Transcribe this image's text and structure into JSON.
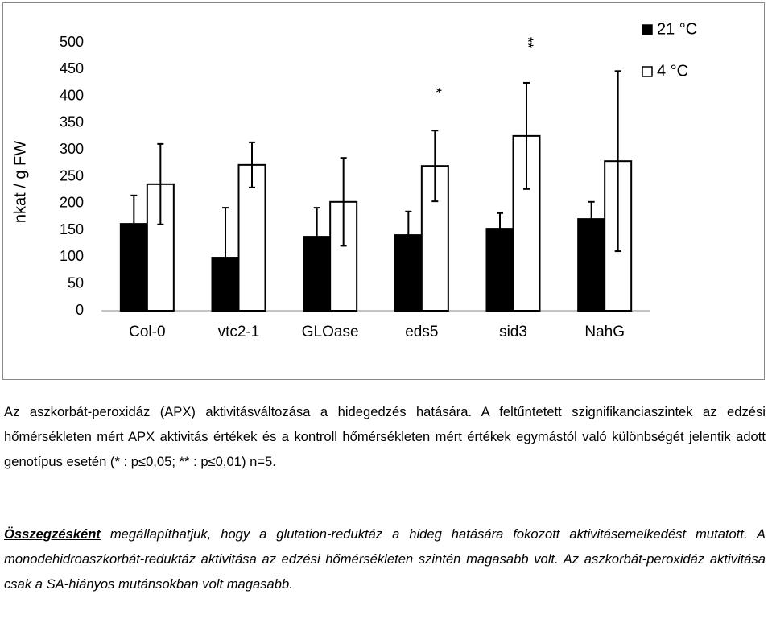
{
  "chart_data": {
    "type": "bar",
    "ylabel": "nkat / g FW",
    "categories": [
      "Col-0",
      "vtc2-1",
      "GLOase",
      "eds5",
      "sid3",
      "NahG"
    ],
    "series": [
      {
        "name": "21 °C",
        "color": "#000000",
        "values": [
          162,
          99,
          138,
          141,
          153,
          171
        ],
        "errors": [
          53,
          93,
          54,
          44,
          29,
          32
        ],
        "error_bars": "up",
        "markers": [
          null,
          null,
          null,
          null,
          null,
          null
        ]
      },
      {
        "name": "4 °C",
        "color": "#ffffff",
        "values": [
          236,
          272,
          203,
          270,
          326,
          279
        ],
        "errors": [
          75,
          42,
          82,
          66,
          99,
          168
        ],
        "error_bars": "both",
        "markers": [
          null,
          null,
          null,
          "*",
          "**",
          null
        ]
      }
    ],
    "ylim": [
      0,
      500
    ],
    "yticks": [
      0,
      50,
      100,
      150,
      200,
      250,
      300,
      350,
      400,
      450,
      500
    ],
    "grid": false,
    "legend": "upper right"
  },
  "caption": "Az aszkorbát-peroxidáz (APX) aktivitásváltozása a hidegedzés hatására. A feltűntetett szignifikanciaszintek az edzési hőmérsékleten mért APX aktivitás értékek és a kontroll hőmérsékleten mért értékek egymástól való különbségét jelentik adott genotípus esetén (* : p≤0,05; ** : p≤0,01) n=5.",
  "summary": {
    "lead": "Összegzésként",
    "text": "megállapíthatjuk, hogy a glutation-reduktáz a hideg hatására fokozott aktivitásemelkedést mutatott. A monodehidroaszkorbát-reduktáz aktivitása az edzési hőmérsékleten szintén magasabb volt. Az aszkorbát-peroxidáz aktivitása csak a SA-hiányos mutánsokban volt magasabb."
  }
}
